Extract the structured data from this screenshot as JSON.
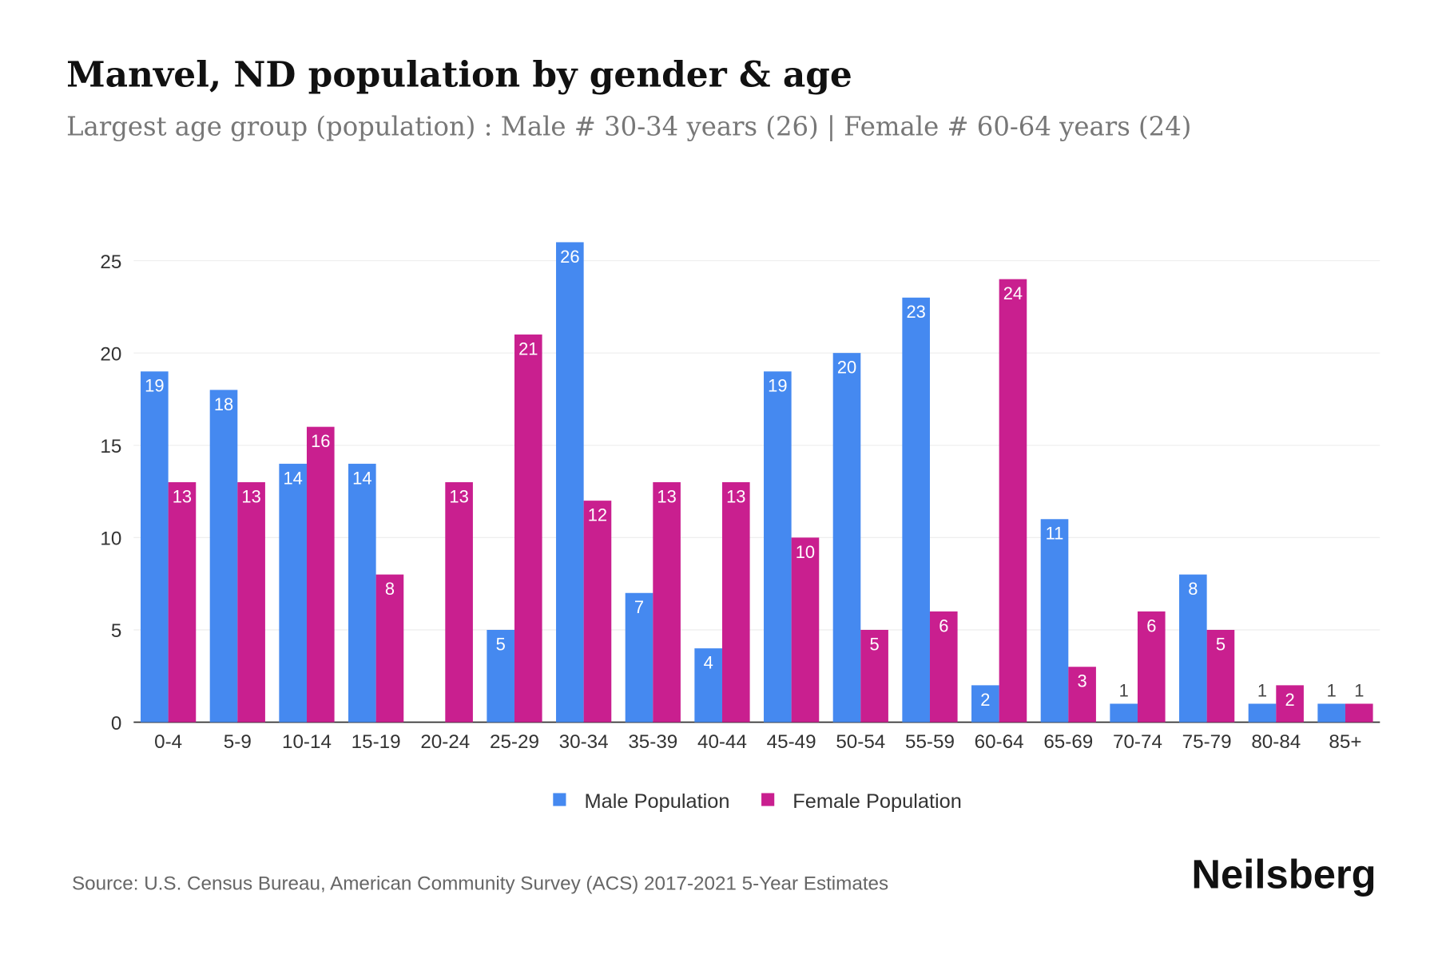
{
  "title": "Manvel, ND population by gender & age",
  "subtitle": "Largest age group (population) : Male # 30-34 years (26) | Female # 60-64 years (24)",
  "source": "Source: U.S. Census Bureau, American Community Survey (ACS) 2017-2021 5-Year Estimates",
  "logo": "Neilsberg",
  "chart_data": {
    "type": "bar",
    "categories": [
      "0-4",
      "5-9",
      "10-14",
      "15-19",
      "20-24",
      "25-29",
      "30-34",
      "35-39",
      "40-44",
      "45-49",
      "50-54",
      "55-59",
      "60-64",
      "65-69",
      "70-74",
      "75-79",
      "80-84",
      "85+"
    ],
    "series": [
      {
        "name": "Male Population",
        "color": "#4589F0",
        "values": [
          19,
          18,
          14,
          14,
          0,
          5,
          26,
          7,
          4,
          19,
          20,
          23,
          2,
          11,
          1,
          8,
          1,
          1
        ]
      },
      {
        "name": "Female Population",
        "color": "#C91F8F",
        "values": [
          13,
          13,
          16,
          8,
          13,
          21,
          12,
          13,
          13,
          10,
          5,
          6,
          24,
          3,
          6,
          5,
          2,
          1
        ]
      }
    ],
    "yticks": [
      0,
      5,
      10,
      15,
      20,
      25
    ],
    "ylim": [
      0,
      26
    ],
    "grid": true,
    "legend": "bottom",
    "xlabel": "",
    "ylabel": ""
  }
}
